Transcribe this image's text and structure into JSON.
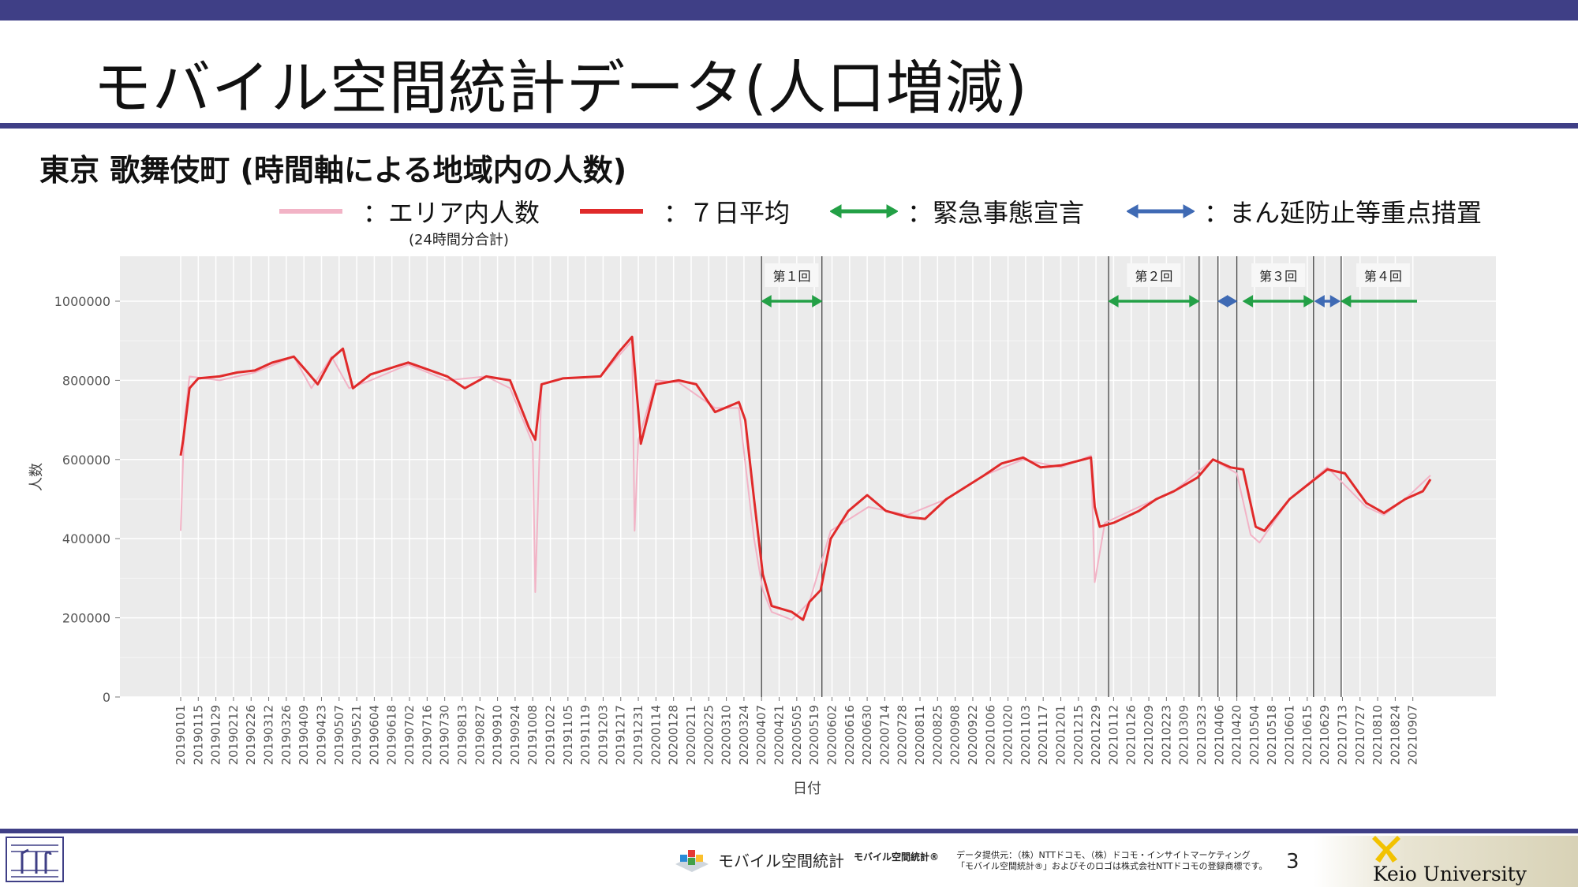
{
  "slide": {
    "title": "モバイル空間統計データ(人口増減)",
    "subtitle": "東京 歌舞伎町 (時間軸による地域内の人数)",
    "page_number": "3"
  },
  "legend": {
    "items": [
      {
        "label": "：エリア内人数",
        "color": "#f2b3c6",
        "type": "line"
      },
      {
        "label": "：７日平均",
        "color": "#e02a2a",
        "type": "line"
      },
      {
        "label": "：緊急事態宣言",
        "color": "#23a046",
        "type": "arrow"
      },
      {
        "label": "：まん延防止等重点措置",
        "color": "#3f6ab4",
        "type": "arrow"
      }
    ],
    "note": "(24時間分合計)"
  },
  "footer": {
    "brand": "モバイル空間統計",
    "brand_sub": "モバイル空間統計®",
    "credit_line1": "データ提供元：（株）NTTドコモ、（株）ドコモ・インサイトマーケティング",
    "credit_line2": "「モバイル空間統計®」およびそのロゴは株式会社NTTドコモの登録商標です。",
    "university": "Keio University"
  },
  "chart_data": {
    "type": "line",
    "xlabel": "日付",
    "ylabel": "人数",
    "ylim": [
      0,
      1100000
    ],
    "yticks": [
      0,
      200000,
      400000,
      600000,
      800000,
      1000000
    ],
    "x_range": [
      "20190101",
      "20210921"
    ],
    "xtick_labels": [
      "20190101",
      "20190115",
      "20190129",
      "20190212",
      "20190226",
      "20190312",
      "20190326",
      "20190409",
      "20190423",
      "20190507",
      "20190521",
      "20190604",
      "20190618",
      "20190702",
      "20190716",
      "20190730",
      "20190813",
      "20190827",
      "20190910",
      "20190924",
      "20191008",
      "20191022",
      "20191105",
      "20191119",
      "20191203",
      "20191217",
      "20191231",
      "20200114",
      "20200128",
      "20200211",
      "20200225",
      "20200310",
      "20200324",
      "20200407",
      "20200421",
      "20200505",
      "20200519",
      "20200602",
      "20200616",
      "20200630",
      "20200714",
      "20200728",
      "20200811",
      "20200825",
      "20200908",
      "20200922",
      "20201006",
      "20201020",
      "20201103",
      "20201117",
      "20201201",
      "20201215",
      "20201229",
      "20210112",
      "20210126",
      "20210209",
      "20210223",
      "20210309",
      "20210323",
      "20210406",
      "20210420",
      "20210504",
      "20210518",
      "20210601",
      "20210615",
      "20210629",
      "20210713",
      "20210727",
      "20210810",
      "20210824",
      "20210907"
    ],
    "grid": true,
    "series": [
      {
        "name": "エリア内人数",
        "color": "#f2b3c6",
        "points": [
          [
            "20190101",
            420000
          ],
          [
            "20190104",
            700000
          ],
          [
            "20190108",
            810000
          ],
          [
            "20190201",
            800000
          ],
          [
            "20190301",
            820000
          ],
          [
            "20190401",
            860000
          ],
          [
            "20190415",
            780000
          ],
          [
            "20190501",
            860000
          ],
          [
            "20190515",
            780000
          ],
          [
            "20190601",
            800000
          ],
          [
            "20190701",
            840000
          ],
          [
            "20190801",
            800000
          ],
          [
            "20190901",
            810000
          ],
          [
            "20190920",
            780000
          ],
          [
            "20191008",
            640000
          ],
          [
            "20191010",
            265000
          ],
          [
            "20191015",
            790000
          ],
          [
            "20191101",
            805000
          ],
          [
            "20191201",
            810000
          ],
          [
            "20191226",
            900000
          ],
          [
            "20191228",
            420000
          ],
          [
            "20191231",
            650000
          ],
          [
            "20200114",
            800000
          ],
          [
            "20200201",
            795000
          ],
          [
            "20200301",
            730000
          ],
          [
            "20200320",
            730000
          ],
          [
            "20200401",
            400000
          ],
          [
            "20200408",
            270000
          ],
          [
            "20200415",
            215000
          ],
          [
            "20200501",
            195000
          ],
          [
            "20200515",
            240000
          ],
          [
            "20200601",
            420000
          ],
          [
            "20200701",
            480000
          ],
          [
            "20200801",
            460000
          ],
          [
            "20200901",
            500000
          ],
          [
            "20201001",
            560000
          ],
          [
            "20201101",
            600000
          ],
          [
            "20201201",
            580000
          ],
          [
            "20201225",
            610000
          ],
          [
            "20201228",
            290000
          ],
          [
            "20210105",
            440000
          ],
          [
            "20210201",
            480000
          ],
          [
            "20210301",
            520000
          ],
          [
            "20210401",
            600000
          ],
          [
            "20210420",
            565000
          ],
          [
            "20210501",
            410000
          ],
          [
            "20210508",
            390000
          ],
          [
            "20210601",
            500000
          ],
          [
            "20210701",
            580000
          ],
          [
            "20210801",
            480000
          ],
          [
            "20210815",
            460000
          ],
          [
            "20210901",
            500000
          ],
          [
            "20210921",
            560000
          ]
        ]
      },
      {
        "name": "７日平均",
        "color": "#e02a2a",
        "points": [
          [
            "20190101",
            610000
          ],
          [
            "20190103",
            650000
          ],
          [
            "20190108",
            780000
          ],
          [
            "20190115",
            805000
          ],
          [
            "20190201",
            810000
          ],
          [
            "20190215",
            820000
          ],
          [
            "20190301",
            825000
          ],
          [
            "20190315",
            845000
          ],
          [
            "20190401",
            860000
          ],
          [
            "20190412",
            820000
          ],
          [
            "20190420",
            790000
          ],
          [
            "20190501",
            855000
          ],
          [
            "20190510",
            880000
          ],
          [
            "20190518",
            780000
          ],
          [
            "20190601",
            815000
          ],
          [
            "20190701",
            845000
          ],
          [
            "20190801",
            810000
          ],
          [
            "20190815",
            780000
          ],
          [
            "20190901",
            810000
          ],
          [
            "20190920",
            800000
          ],
          [
            "20191005",
            680000
          ],
          [
            "20191010",
            650000
          ],
          [
            "20191015",
            790000
          ],
          [
            "20191101",
            805000
          ],
          [
            "20191201",
            810000
          ],
          [
            "20191215",
            870000
          ],
          [
            "20191226",
            910000
          ],
          [
            "20191231",
            720000
          ],
          [
            "20200102",
            640000
          ],
          [
            "20200114",
            790000
          ],
          [
            "20200201",
            800000
          ],
          [
            "20200215",
            790000
          ],
          [
            "20200301",
            720000
          ],
          [
            "20200320",
            745000
          ],
          [
            "20200325",
            700000
          ],
          [
            "20200401",
            500000
          ],
          [
            "20200408",
            310000
          ],
          [
            "20200415",
            230000
          ],
          [
            "20200501",
            215000
          ],
          [
            "20200510",
            195000
          ],
          [
            "20200515",
            240000
          ],
          [
            "20200524",
            270000
          ],
          [
            "20200601",
            400000
          ],
          [
            "20200615",
            470000
          ],
          [
            "20200630",
            510000
          ],
          [
            "20200715",
            470000
          ],
          [
            "20200801",
            455000
          ],
          [
            "20200815",
            450000
          ],
          [
            "20200901",
            500000
          ],
          [
            "20201001",
            560000
          ],
          [
            "20201015",
            590000
          ],
          [
            "20201101",
            605000
          ],
          [
            "20201115",
            580000
          ],
          [
            "20201201",
            585000
          ],
          [
            "20201225",
            605000
          ],
          [
            "20201228",
            480000
          ],
          [
            "20210101",
            430000
          ],
          [
            "20210112",
            440000
          ],
          [
            "20210201",
            470000
          ],
          [
            "20210215",
            500000
          ],
          [
            "20210301",
            520000
          ],
          [
            "20210320",
            555000
          ],
          [
            "20210401",
            600000
          ],
          [
            "20210415",
            580000
          ],
          [
            "20210425",
            575000
          ],
          [
            "20210505",
            430000
          ],
          [
            "20210512",
            420000
          ],
          [
            "20210601",
            500000
          ],
          [
            "20210615",
            535000
          ],
          [
            "20210701",
            575000
          ],
          [
            "20210715",
            565000
          ],
          [
            "20210801",
            490000
          ],
          [
            "20210815",
            465000
          ],
          [
            "20210901",
            500000
          ],
          [
            "20210915",
            520000
          ],
          [
            "20210921",
            550000
          ]
        ]
      }
    ],
    "vertical_lines": [
      "20200407",
      "20200525",
      "20210108",
      "20210321",
      "20210405",
      "20210420",
      "20210620",
      "20210712"
    ],
    "periods": [
      {
        "label": "第１回",
        "kind": "緊急事態宣言",
        "start": "20200407",
        "end": "20200525"
      },
      {
        "label": "第２回",
        "kind": "緊急事態宣言",
        "start": "20210108",
        "end": "20210321"
      },
      {
        "label": "",
        "kind": "まん延防止等重点措置",
        "start": "20210405",
        "end": "20210420"
      },
      {
        "label": "第３回",
        "kind": "緊急事態宣言",
        "start": "20210425",
        "end": "20210620"
      },
      {
        "label": "",
        "kind": "まん延防止等重点措置",
        "start": "20210621",
        "end": "20210711"
      },
      {
        "label": "第４回",
        "kind": "緊急事態宣言",
        "start": "20210712",
        "end": "20210930"
      }
    ]
  }
}
